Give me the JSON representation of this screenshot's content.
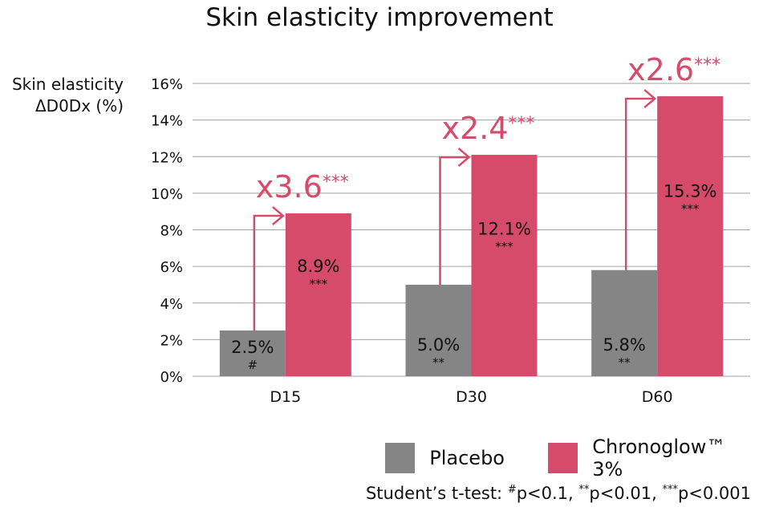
{
  "colors": {
    "placebo": "#858585",
    "chronoglow": "#d64b69",
    "accent": "#d64b69",
    "grid": "#a0a0a0"
  },
  "chart_data": {
    "type": "bar",
    "title": "Skin elasticity improvement",
    "ylabel_line1": "Skin elasticity",
    "ylabel_line2": "ΔD0Dx (%)",
    "xlabel": "",
    "ylim": [
      0,
      16
    ],
    "yticks": [
      "0%",
      "2%",
      "4%",
      "6%",
      "8%",
      "10%",
      "12%",
      "14%",
      "16%"
    ],
    "categories": [
      "D15",
      "D30",
      "D60"
    ],
    "series": [
      {
        "name": "Placebo",
        "values": [
          2.5,
          5.0,
          5.8
        ],
        "labels": [
          "2.5%",
          "5.0%",
          "5.8%"
        ],
        "sig": [
          "#",
          "**",
          "**"
        ]
      },
      {
        "name": "Chronoglow™ 3%",
        "values": [
          8.9,
          12.1,
          15.3
        ],
        "labels": [
          "8.9%",
          "12.1%",
          "15.3%"
        ],
        "sig": [
          "***",
          "***",
          "***"
        ]
      }
    ],
    "multipliers": [
      "x3.6",
      "x2.4",
      "x2.6"
    ],
    "multiplier_sig": "***",
    "legend_position": "bottom-right",
    "grid": true
  },
  "legend": {
    "placebo": "Placebo",
    "chronoglow": "Chronoglow™ 3%"
  },
  "footnote": {
    "prefix": "Student’s t-test: ",
    "m1": "#",
    "t1": "p<0.1, ",
    "m2": "**",
    "t2": "p<0.01, ",
    "m3": "***",
    "t3": "p<0.001"
  }
}
